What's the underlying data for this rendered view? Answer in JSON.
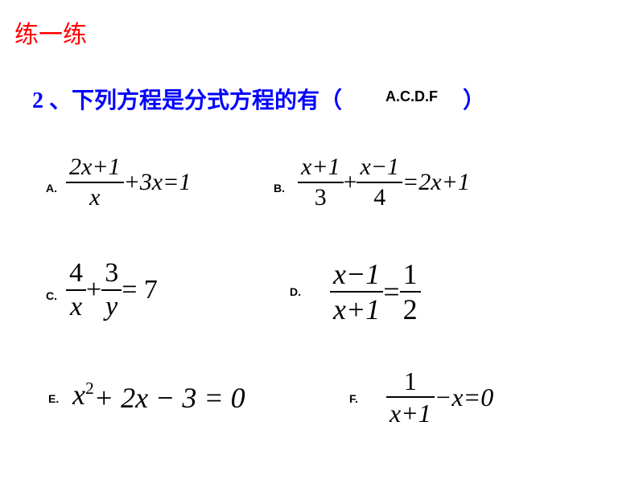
{
  "title": "练一练",
  "question_prefix": "2 、下列方程是分式方程的有（",
  "answer": "A.C.D.F",
  "paren_close": "）",
  "options": {
    "a": {
      "label": "A."
    },
    "b": {
      "label": "B."
    },
    "c": {
      "label": "C."
    },
    "d": {
      "label": "D."
    },
    "e": {
      "label": "E."
    },
    "f": {
      "label": "F."
    }
  },
  "equations": {
    "a": {
      "num": "2x+1",
      "den": "x",
      "rest": "+3x=1"
    },
    "b": {
      "f1num": "x+1",
      "f1den": "3",
      "plus": "+",
      "f2num": "x−1",
      "f2den": "4",
      "rest": "=2x+1"
    },
    "c": {
      "f1num": "4",
      "f1den": "x",
      "plus": " + ",
      "f2num": "3",
      "f2den": "y",
      "rest": " =  7"
    },
    "d": {
      "lnum": "x−1",
      "lden": "x+1",
      "eq": "=",
      "rnum": "1",
      "rden": "2"
    },
    "e": {
      "text_before": "x",
      "exp": "2",
      "text_after": " + 2x − 3 = 0"
    },
    "f": {
      "num": "1",
      "den": "x+1",
      "rest": "−x=0"
    }
  },
  "colors": {
    "title": "#ff0000",
    "question": "#0000ff",
    "text": "#000000",
    "background": "#ffffff"
  }
}
